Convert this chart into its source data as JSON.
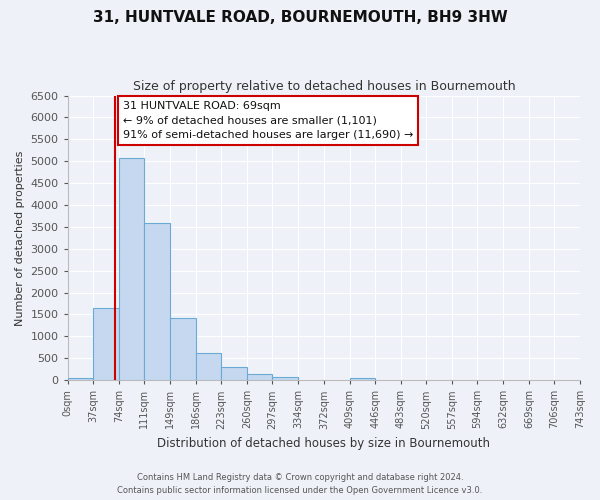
{
  "title": "31, HUNTVALE ROAD, BOURNEMOUTH, BH9 3HW",
  "subtitle": "Size of property relative to detached houses in Bournemouth",
  "xlabel": "Distribution of detached houses by size in Bournemouth",
  "ylabel": "Number of detached properties",
  "bin_edges": [
    0,
    37,
    74,
    111,
    149,
    186,
    223,
    260,
    297,
    334,
    372,
    409,
    446,
    483,
    520,
    557,
    594,
    632,
    669,
    706,
    743
  ],
  "bin_counts": [
    60,
    1650,
    5080,
    3580,
    1420,
    620,
    310,
    145,
    65,
    0,
    0,
    50,
    0,
    0,
    0,
    0,
    0,
    0,
    0,
    0
  ],
  "bar_color": "#c5d8f0",
  "bar_edge_color": "#6aaad4",
  "property_line_x": 69,
  "annotation_title": "31 HUNTVALE ROAD: 69sqm",
  "annotation_line1": "← 9% of detached houses are smaller (1,101)",
  "annotation_line2": "91% of semi-detached houses are larger (11,690) →",
  "annotation_box_facecolor": "#ffffff",
  "annotation_box_edgecolor": "#cc0000",
  "property_line_color": "#cc0000",
  "ylim": [
    0,
    6500
  ],
  "yticks": [
    0,
    500,
    1000,
    1500,
    2000,
    2500,
    3000,
    3500,
    4000,
    4500,
    5000,
    5500,
    6000,
    6500
  ],
  "bg_color": "#eef2f8",
  "plot_bg_color": "#eef2f8",
  "grid_color": "#ffffff",
  "footer1": "Contains HM Land Registry data © Crown copyright and database right 2024.",
  "footer2": "Contains public sector information licensed under the Open Government Licence v3.0."
}
